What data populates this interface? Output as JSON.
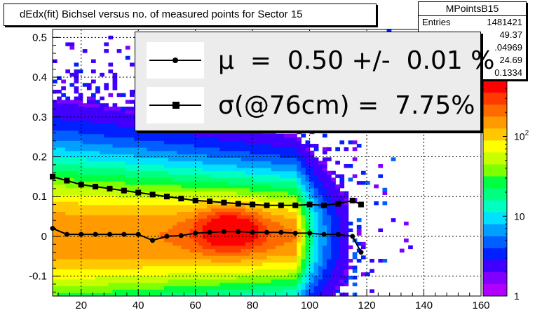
{
  "title": "dEdx(fit) Bichsel versus no. of measured points for Sector 15",
  "stats": {
    "name": "MPointsB15",
    "rows": [
      {
        "label": "Entries",
        "value": "1481421"
      },
      {
        "label": "",
        "value": "49.37"
      },
      {
        "label": "",
        "value": ".04969"
      },
      {
        "label": "",
        "value": "24.69"
      },
      {
        "label": "",
        "value": "0.1334"
      }
    ]
  },
  "legend": [
    {
      "symbol": "circle",
      "text": "μ  =  0.50 +/-  0.01 %"
    },
    {
      "symbol": "square",
      "text": "σ(@76cm) =  7.75%"
    }
  ],
  "colors": {
    "mean_marker": "#000000",
    "sigma_marker": "#000000",
    "legend_bg": "#ececec"
  },
  "chart_data": {
    "type": "heatmap",
    "title": "dEdx(fit) Bichsel versus no. of measured points for Sector 15",
    "xlim": [
      10,
      160
    ],
    "ylim": [
      -0.15,
      0.52
    ],
    "xticks": [
      20,
      40,
      60,
      80,
      100,
      120,
      140,
      160
    ],
    "yticks": [
      -0.1,
      0,
      0.1,
      0.2,
      0.3,
      0.4,
      0.5
    ],
    "ytick_labels": [
      "-0.1",
      "0",
      "0.1",
      "0.2",
      "0.3",
      "0.4",
      "0.5"
    ],
    "grid": true,
    "colorbar": {
      "scale": "log",
      "ticks": [
        1,
        10,
        100
      ],
      "tick_labels": [
        "1",
        "10",
        "10^2"
      ]
    },
    "series": [
      {
        "symbol": "circle",
        "x": [
          10,
          15,
          20,
          25,
          30,
          35,
          40,
          45,
          50,
          55,
          60,
          65,
          70,
          75,
          80,
          85,
          90,
          95,
          100,
          105,
          110,
          115,
          118
        ],
        "y": [
          0.02,
          0.005,
          0.005,
          0.005,
          0.005,
          0.005,
          0.005,
          -0.01,
          0.0,
          0.002,
          0.008,
          0.01,
          0.012,
          0.012,
          0.01,
          0.01,
          0.01,
          0.008,
          0.008,
          0.005,
          0.005,
          0.0,
          -0.04
        ]
      },
      {
        "symbol": "square",
        "x": [
          10,
          15,
          20,
          25,
          30,
          35,
          40,
          45,
          50,
          55,
          60,
          65,
          70,
          75,
          80,
          85,
          90,
          95,
          100,
          105,
          110,
          115,
          118
        ],
        "y": [
          0.15,
          0.14,
          0.13,
          0.125,
          0.12,
          0.115,
          0.11,
          0.105,
          0.1,
          0.095,
          0.09,
          0.088,
          0.085,
          0.082,
          0.08,
          0.078,
          0.078,
          0.078,
          0.08,
          0.078,
          0.082,
          0.09,
          0.08
        ]
      }
    ]
  }
}
